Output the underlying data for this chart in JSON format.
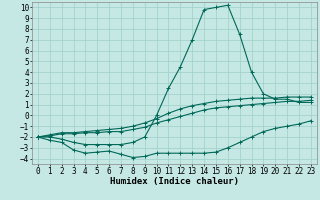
{
  "xlabel": "Humidex (Indice chaleur)",
  "xlim": [
    -0.5,
    23.5
  ],
  "ylim": [
    -4.5,
    10.5
  ],
  "yticks": [
    -4,
    -3,
    -2,
    -1,
    0,
    1,
    2,
    3,
    4,
    5,
    6,
    7,
    8,
    9,
    10
  ],
  "xticks": [
    0,
    1,
    2,
    3,
    4,
    5,
    6,
    7,
    8,
    9,
    10,
    11,
    12,
    13,
    14,
    15,
    16,
    17,
    18,
    19,
    20,
    21,
    22,
    23
  ],
  "bg_color": "#c5e8e4",
  "grid_color": "#9fcfca",
  "line_color": "#006858",
  "line1_x": [
    0,
    1,
    2,
    3,
    4,
    5,
    6,
    7,
    8,
    9,
    10,
    11,
    12,
    13,
    14,
    15,
    16,
    17,
    18,
    19,
    20,
    21,
    22,
    23
  ],
  "line1_y": [
    -2.0,
    -2.3,
    -2.5,
    -3.2,
    -3.5,
    -3.4,
    -3.3,
    -3.6,
    -3.9,
    -3.8,
    -3.5,
    -3.5,
    -3.5,
    -3.5,
    -3.5,
    -3.4,
    -3.0,
    -2.5,
    -2.0,
    -1.5,
    -1.2,
    -1.0,
    -0.8,
    -0.5
  ],
  "line2_x": [
    0,
    1,
    2,
    3,
    4,
    5,
    6,
    7,
    8,
    9,
    10,
    11,
    12,
    13,
    14,
    15,
    16,
    17,
    18,
    19,
    20,
    21,
    22,
    23
  ],
  "line2_y": [
    -2.0,
    -2.0,
    -2.2,
    -2.5,
    -2.7,
    -2.7,
    -2.7,
    -2.7,
    -2.5,
    -2.0,
    0.0,
    2.5,
    4.5,
    7.0,
    9.8,
    10.0,
    10.2,
    7.5,
    4.0,
    2.0,
    1.5,
    1.5,
    1.2,
    1.2
  ],
  "line3_x": [
    0,
    1,
    2,
    3,
    4,
    5,
    6,
    7,
    8,
    9,
    10,
    11,
    12,
    13,
    14,
    15,
    16,
    17,
    18,
    19,
    20,
    21,
    22,
    23
  ],
  "line3_y": [
    -2.0,
    -1.8,
    -1.6,
    -1.6,
    -1.5,
    -1.4,
    -1.3,
    -1.2,
    -1.0,
    -0.7,
    -0.3,
    0.2,
    0.6,
    0.9,
    1.1,
    1.3,
    1.4,
    1.5,
    1.6,
    1.6,
    1.6,
    1.7,
    1.7,
    1.7
  ],
  "line4_x": [
    0,
    1,
    2,
    3,
    4,
    5,
    6,
    7,
    8,
    9,
    10,
    11,
    12,
    13,
    14,
    15,
    16,
    17,
    18,
    19,
    20,
    21,
    22,
    23
  ],
  "line4_y": [
    -2.0,
    -1.9,
    -1.7,
    -1.7,
    -1.6,
    -1.6,
    -1.5,
    -1.5,
    -1.3,
    -1.1,
    -0.7,
    -0.4,
    -0.1,
    0.2,
    0.5,
    0.7,
    0.8,
    0.9,
    1.0,
    1.1,
    1.2,
    1.3,
    1.3,
    1.4
  ],
  "tick_fontsize": 5.5,
  "label_fontsize": 6.5,
  "monospace_font": "monospace"
}
